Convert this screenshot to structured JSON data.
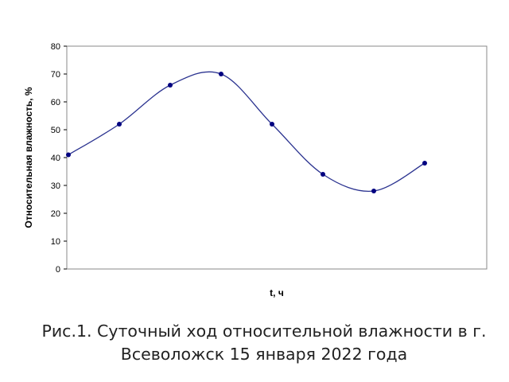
{
  "chart_data": {
    "type": "line",
    "smooth": true,
    "xlabel": "t, ч",
    "ylabel": "Относительная влажность, %",
    "ylim": [
      0,
      80
    ],
    "yticks": [
      "0",
      "10",
      "20",
      "30",
      "40",
      "50",
      "60",
      "70",
      "80"
    ],
    "x": [
      1,
      2,
      3,
      4,
      5,
      6,
      7,
      8
    ],
    "values": [
      41,
      52,
      66,
      70,
      52,
      34,
      28,
      38
    ],
    "line_color": "#2b3390",
    "marker_color": "#000080",
    "grid": false,
    "legend": "none"
  },
  "caption": "Рис.1. Суточный ход относительной влажности в г. Всеволожск 15 января 2022 года"
}
